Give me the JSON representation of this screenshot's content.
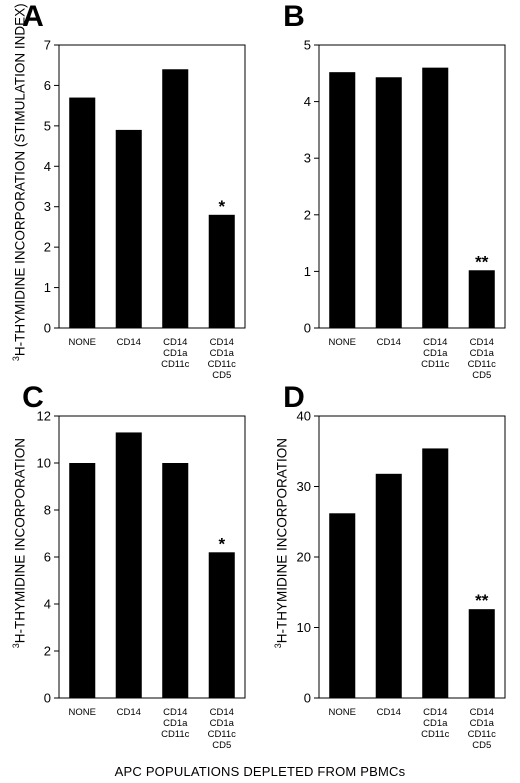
{
  "figure": {
    "y_axis_label_superscript": "3",
    "y_axis_label_upper": "H-THYMIDINE INCORPORATION (STIMULATION INDEX)",
    "y_axis_label_lower": "H-THYMIDINE INCORPORATION",
    "x_axis_label": "APC POPULATIONS DEPLETED FROM PBMCs"
  },
  "chart_data": [
    {
      "type": "bar",
      "panel": "A",
      "categories": [
        [
          "NONE"
        ],
        [
          "CD14"
        ],
        [
          "CD14",
          "CD1a",
          "CD11c"
        ],
        [
          "CD14",
          "CD1a",
          "CD11c",
          "CD5"
        ]
      ],
      "values": [
        5.7,
        4.9,
        6.4,
        2.8
      ],
      "annotations": [
        "",
        "",
        "",
        "*"
      ],
      "ylim": [
        0,
        7
      ],
      "yticks": [
        0,
        1,
        2,
        3,
        4,
        5,
        6,
        7
      ],
      "grid": false,
      "bar_color": "#000000"
    },
    {
      "type": "bar",
      "panel": "B",
      "categories": [
        [
          "NONE"
        ],
        [
          "CD14"
        ],
        [
          "CD14",
          "CD1a",
          "CD11c"
        ],
        [
          "CD14",
          "CD1a",
          "CD11c",
          "CD5"
        ]
      ],
      "values": [
        4.52,
        4.43,
        4.6,
        1.02
      ],
      "annotations": [
        "",
        "",
        "",
        "**"
      ],
      "ylim": [
        0,
        5
      ],
      "yticks": [
        0,
        1,
        2,
        3,
        4,
        5
      ],
      "grid": false,
      "bar_color": "#000000"
    },
    {
      "type": "bar",
      "panel": "C",
      "categories": [
        [
          "NONE"
        ],
        [
          "CD14"
        ],
        [
          "CD14",
          "CD1a",
          "CD11c"
        ],
        [
          "CD14",
          "CD1a",
          "CD11c",
          "CD5"
        ]
      ],
      "values": [
        10.0,
        11.3,
        10.0,
        6.2
      ],
      "annotations": [
        "",
        "",
        "",
        "*"
      ],
      "ylim": [
        0,
        12
      ],
      "yticks": [
        0,
        2,
        4,
        6,
        8,
        10,
        12
      ],
      "grid": false,
      "bar_color": "#000000"
    },
    {
      "type": "bar",
      "panel": "D",
      "categories": [
        [
          "NONE"
        ],
        [
          "CD14"
        ],
        [
          "CD14",
          "CD1a",
          "CD11c"
        ],
        [
          "CD14",
          "CD1a",
          "CD11c",
          "CD5"
        ]
      ],
      "values": [
        26.2,
        31.8,
        35.4,
        12.6
      ],
      "annotations": [
        "",
        "",
        "",
        "**"
      ],
      "ylim": [
        0,
        40
      ],
      "yticks": [
        0,
        10,
        20,
        30,
        40
      ],
      "grid": false,
      "bar_color": "#000000"
    }
  ]
}
